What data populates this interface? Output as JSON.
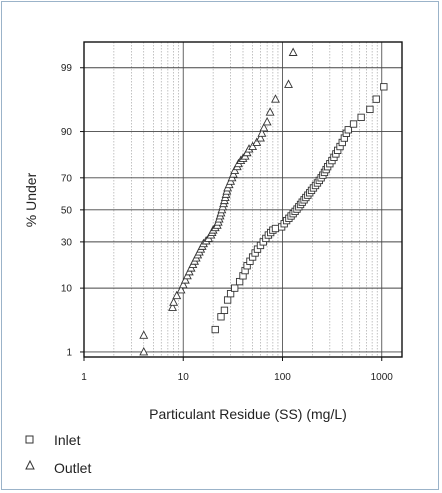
{
  "chart_data": {
    "type": "scatter",
    "x_scale": "log",
    "y_scale": "probability",
    "xlabel": "Particulant Residue (SS) (mg/L)",
    "ylabel": "% Under",
    "xlim": [
      1,
      1600
    ],
    "ylim": [
      0.8,
      99.7
    ],
    "x_ticks": [
      1,
      10,
      100,
      1000
    ],
    "x_tick_labels": [
      "1",
      "10",
      "100",
      "1000"
    ],
    "y_ticks": [
      1,
      10,
      30,
      50,
      70,
      90,
      99
    ],
    "y_tick_labels": [
      "1",
      "10",
      "30",
      "50",
      "70",
      "90",
      "99"
    ],
    "grid": true,
    "legend_position": "bottom-left",
    "series": [
      {
        "name": "Inlet",
        "marker": "square",
        "x": [
          21,
          24,
          26,
          28,
          30,
          33,
          37,
          40,
          42,
          44,
          47,
          50,
          53,
          56,
          60,
          64,
          68,
          72,
          76,
          80,
          85,
          98,
          104,
          110,
          116,
          122,
          128,
          134,
          140,
          146,
          152,
          158,
          165,
          172,
          180,
          188,
          196,
          205,
          215,
          225,
          235,
          245,
          255,
          265,
          275,
          285,
          300,
          315,
          330,
          345,
          360,
          380,
          400,
          420,
          440,
          460,
          520,
          620,
          760,
          880,
          1050
        ],
        "y": [
          2.5,
          4,
          5,
          7,
          8.5,
          10,
          12,
          14,
          16,
          18,
          20,
          22,
          24,
          26,
          28,
          30,
          32,
          34,
          35.5,
          37,
          38,
          39,
          41,
          43,
          44.5,
          46,
          47.5,
          49,
          50.5,
          52,
          53.5,
          55,
          56.5,
          58,
          59.5,
          61,
          62.5,
          64,
          65.5,
          67,
          68.5,
          70,
          71.5,
          73,
          74.5,
          76,
          77.5,
          79,
          80.5,
          82,
          83.5,
          85,
          86.5,
          88,
          89.5,
          90.5,
          92,
          93.5,
          95,
          96.5,
          97.8
        ]
      },
      {
        "name": "Outlet",
        "marker": "triangle",
        "x": [
          4,
          4,
          7.8,
          8,
          8.6,
          9.5,
          10,
          10.5,
          11,
          11.5,
          12,
          12.5,
          13,
          13.5,
          14,
          14.5,
          15,
          15.5,
          16,
          17,
          18,
          19,
          19.5,
          20,
          21,
          22,
          22.5,
          23,
          23.5,
          24,
          24.5,
          25,
          25.5,
          26,
          26.5,
          27,
          27.5,
          28,
          29,
          30,
          31,
          32,
          33,
          35,
          36,
          38,
          40,
          42,
          44,
          46,
          50,
          55,
          60,
          62,
          65,
          70,
          75,
          85,
          115,
          128
        ],
        "y": [
          1,
          2,
          5.5,
          6.5,
          8,
          9.5,
          11,
          12.5,
          14,
          15.5,
          17,
          18.5,
          20,
          21.5,
          23,
          24.5,
          26,
          27.5,
          29,
          30.5,
          32,
          34,
          35.5,
          37,
          38.5,
          40,
          42,
          44,
          46,
          48,
          50,
          52,
          54,
          56,
          58,
          60,
          62,
          64,
          66,
          68,
          70,
          72,
          74,
          76,
          77.5,
          79,
          80,
          81,
          82.5,
          84,
          85,
          86.5,
          88,
          89.5,
          91,
          92.5,
          94.5,
          96.5,
          98,
          99.5
        ]
      }
    ]
  }
}
